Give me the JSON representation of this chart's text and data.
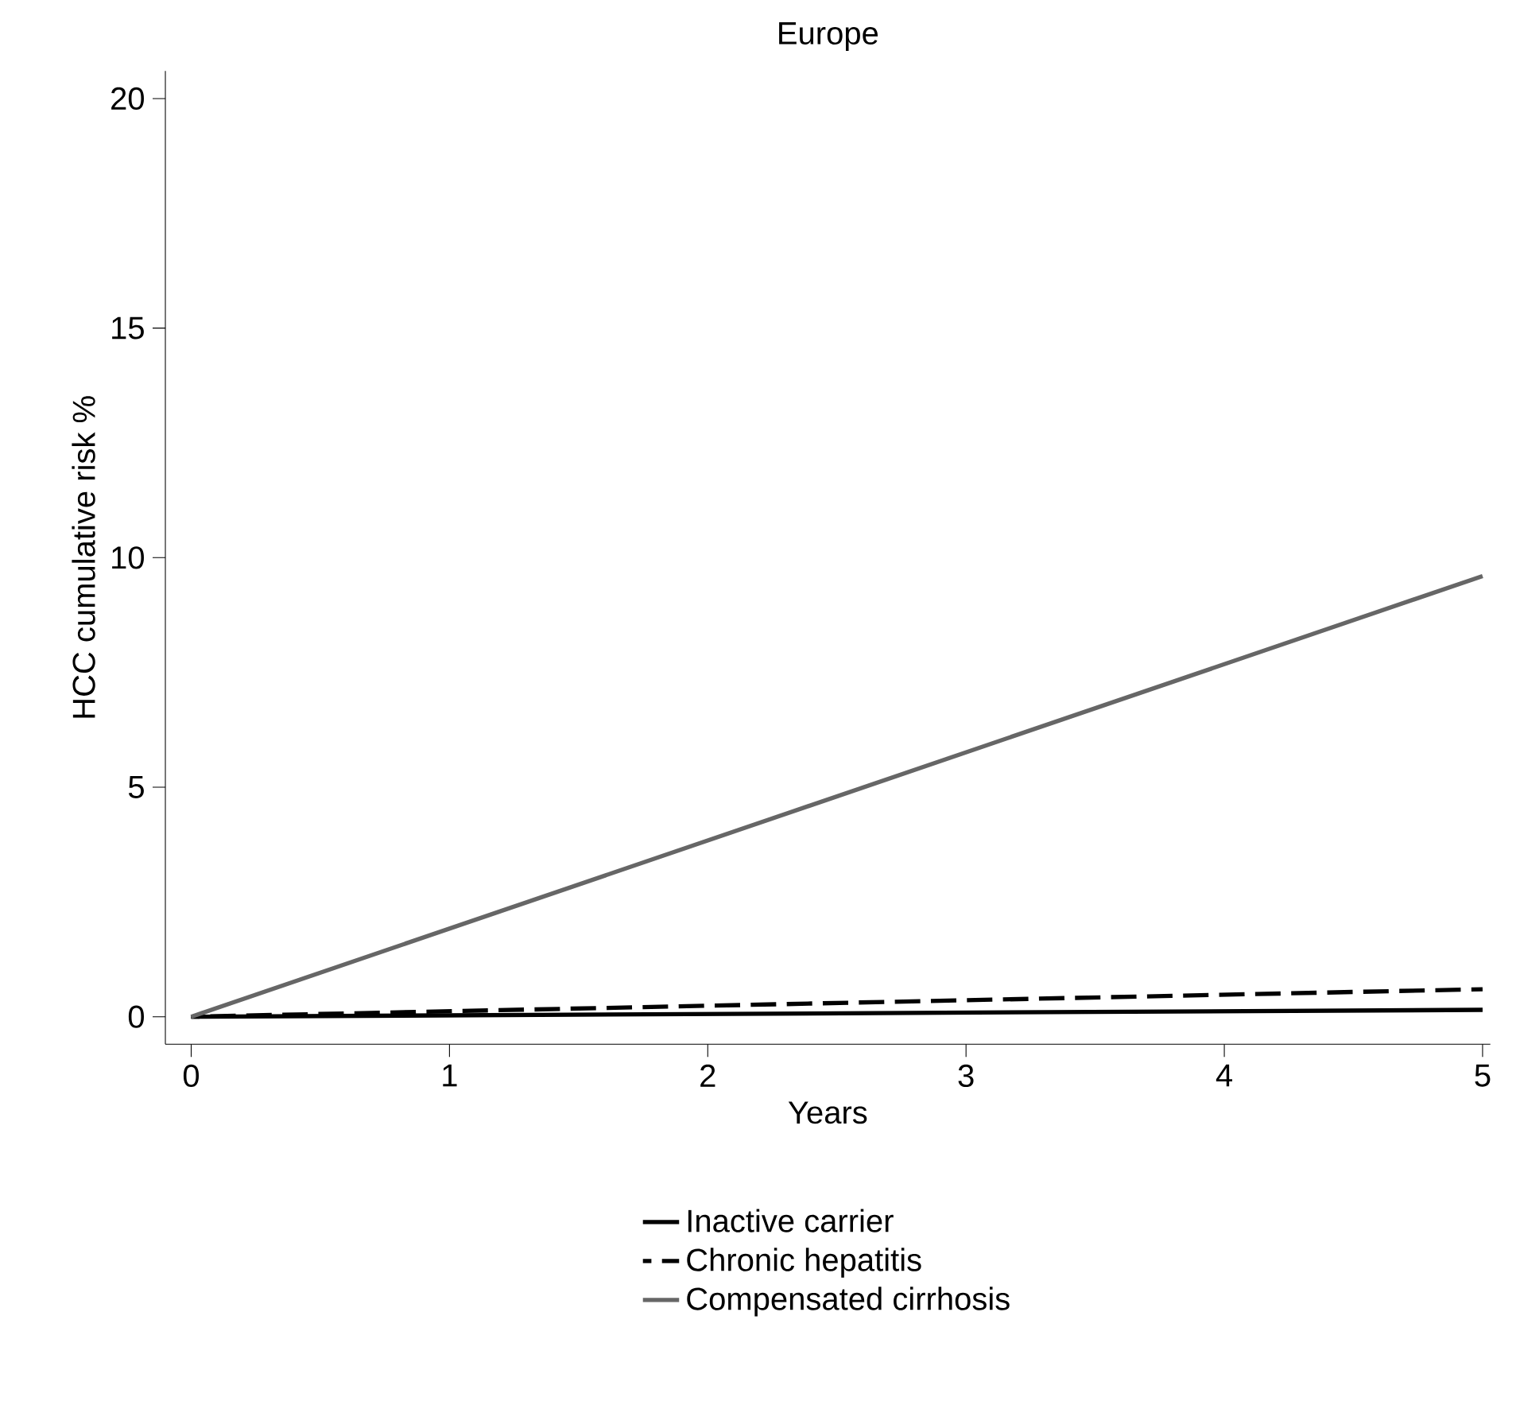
{
  "chart_data": {
    "type": "line",
    "title": "Europe",
    "xlabel": "Years",
    "ylabel": "HCC cumulative risk %",
    "x": [
      0,
      5
    ],
    "series": [
      {
        "name": "Inactive carrier",
        "color": "#000000",
        "line_style": "solid",
        "values": [
          0,
          0.15
        ]
      },
      {
        "name": "Chronic hepatitis",
        "color": "#000000",
        "line_style": "dashed",
        "values": [
          0,
          0.6
        ]
      },
      {
        "name": "Compensated cirrhosis",
        "color": "#666666",
        "line_style": "solid",
        "values": [
          0,
          9.6
        ]
      }
    ],
    "xlim": [
      -0.1,
      5.03
    ],
    "ylim": [
      -0.6,
      20.6
    ],
    "xticks": [
      0,
      1,
      2,
      3,
      4,
      5
    ],
    "yticks": [
      0,
      5,
      10,
      15,
      20
    ],
    "grid": false,
    "legend": "bottom",
    "marker": "none"
  }
}
